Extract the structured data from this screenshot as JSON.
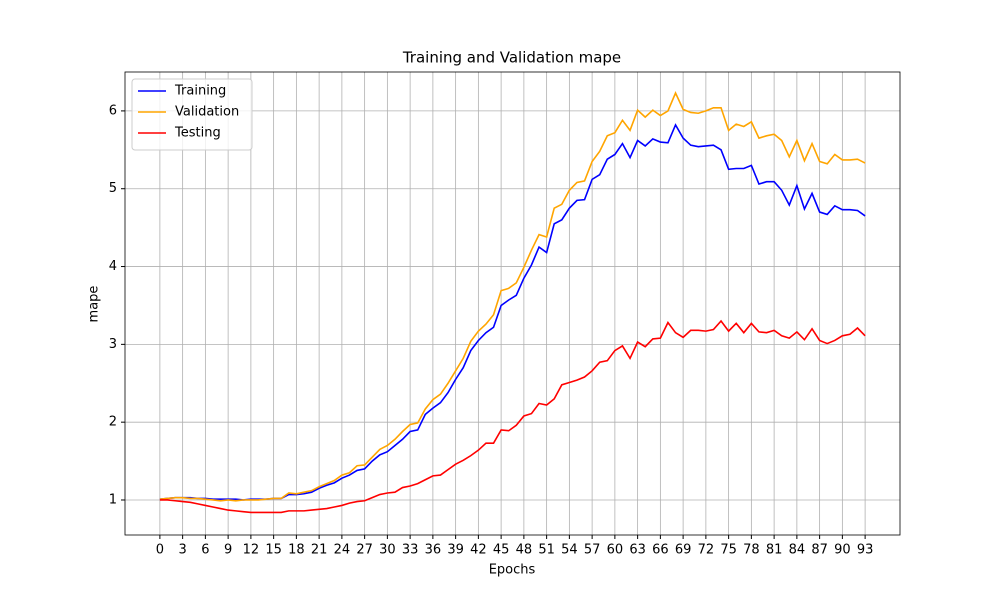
{
  "chart_data": {
    "type": "line",
    "title": "Training and Validation mape",
    "x_label": "Epochs",
    "y_label": "mape",
    "x": [
      0,
      1,
      2,
      3,
      4,
      5,
      6,
      7,
      8,
      9,
      10,
      11,
      12,
      13,
      14,
      15,
      16,
      17,
      18,
      19,
      20,
      21,
      22,
      23,
      24,
      25,
      26,
      27,
      28,
      29,
      30,
      31,
      32,
      33,
      34,
      35,
      36,
      37,
      38,
      39,
      40,
      41,
      42,
      43,
      44,
      45,
      46,
      47,
      48,
      49,
      50,
      51,
      52,
      53,
      54,
      55,
      56,
      57,
      58,
      59,
      60,
      61,
      62,
      63,
      64,
      65,
      66,
      67,
      68,
      69,
      70,
      71,
      72,
      73,
      74,
      75,
      76,
      77,
      78,
      79,
      80,
      81,
      82,
      83,
      84,
      85,
      86,
      87,
      88,
      89,
      90,
      91,
      92,
      93
    ],
    "series": [
      {
        "name": "Training",
        "color": "#0000ff",
        "values": [
          1.01,
          1.02,
          1.03,
          1.03,
          1.03,
          1.02,
          1.02,
          1.01,
          1.01,
          1.01,
          1.01,
          1.0,
          1.01,
          1.01,
          1.01,
          1.02,
          1.02,
          1.07,
          1.07,
          1.08,
          1.1,
          1.15,
          1.19,
          1.22,
          1.28,
          1.32,
          1.38,
          1.4,
          1.5,
          1.58,
          1.62,
          1.7,
          1.78,
          1.88,
          1.9,
          2.1,
          2.18,
          2.25,
          2.38,
          2.55,
          2.7,
          2.92,
          3.05,
          3.15,
          3.22,
          3.5,
          3.57,
          3.63,
          3.85,
          4.02,
          4.25,
          4.18,
          4.55,
          4.6,
          4.75,
          4.85,
          4.86,
          5.12,
          5.18,
          5.38,
          5.44,
          5.58,
          5.4,
          5.62,
          5.55,
          5.64,
          5.6,
          5.59,
          5.82,
          5.65,
          5.56,
          5.54,
          5.55,
          5.56,
          5.5,
          5.25,
          5.26,
          5.26,
          5.3,
          5.06,
          5.09,
          5.09,
          4.98,
          4.79,
          5.04,
          4.74,
          4.94,
          4.7,
          4.67,
          4.78,
          4.73,
          4.73,
          4.72,
          4.65
        ]
      },
      {
        "name": "Validation",
        "color": "#ffa500",
        "values": [
          1.01,
          1.02,
          1.03,
          1.03,
          1.02,
          1.02,
          1.01,
          1.0,
          0.99,
          1.0,
          0.99,
          1.0,
          1.0,
          1.0,
          1.01,
          1.02,
          1.02,
          1.09,
          1.08,
          1.1,
          1.12,
          1.17,
          1.21,
          1.25,
          1.32,
          1.35,
          1.44,
          1.45,
          1.55,
          1.65,
          1.7,
          1.78,
          1.88,
          1.97,
          1.99,
          2.17,
          2.29,
          2.36,
          2.5,
          2.66,
          2.82,
          3.04,
          3.17,
          3.26,
          3.38,
          3.69,
          3.72,
          3.79,
          3.99,
          4.21,
          4.41,
          4.38,
          4.75,
          4.8,
          4.98,
          5.08,
          5.1,
          5.35,
          5.48,
          5.68,
          5.72,
          5.88,
          5.75,
          6.01,
          5.92,
          6.01,
          5.94,
          6.0,
          6.23,
          6.02,
          5.98,
          5.97,
          6.0,
          6.04,
          6.04,
          5.75,
          5.83,
          5.8,
          5.86,
          5.65,
          5.68,
          5.7,
          5.62,
          5.41,
          5.62,
          5.36,
          5.58,
          5.35,
          5.32,
          5.44,
          5.37,
          5.37,
          5.38,
          5.33
        ]
      },
      {
        "name": "Testing",
        "color": "#ff0000",
        "values": [
          1.0,
          1.0,
          0.99,
          0.98,
          0.97,
          0.95,
          0.93,
          0.91,
          0.89,
          0.87,
          0.86,
          0.85,
          0.84,
          0.84,
          0.84,
          0.84,
          0.84,
          0.86,
          0.86,
          0.86,
          0.87,
          0.88,
          0.89,
          0.91,
          0.93,
          0.96,
          0.98,
          0.99,
          1.03,
          1.07,
          1.09,
          1.1,
          1.16,
          1.18,
          1.21,
          1.26,
          1.31,
          1.32,
          1.39,
          1.46,
          1.51,
          1.57,
          1.64,
          1.73,
          1.73,
          1.9,
          1.89,
          1.96,
          2.08,
          2.11,
          2.24,
          2.22,
          2.3,
          2.48,
          2.51,
          2.54,
          2.58,
          2.66,
          2.77,
          2.79,
          2.92,
          2.98,
          2.82,
          3.03,
          2.97,
          3.07,
          3.08,
          3.28,
          3.15,
          3.09,
          3.18,
          3.18,
          3.17,
          3.19,
          3.3,
          3.17,
          3.27,
          3.15,
          3.27,
          3.16,
          3.15,
          3.18,
          3.11,
          3.08,
          3.16,
          3.06,
          3.2,
          3.05,
          3.01,
          3.05,
          3.11,
          3.13,
          3.21,
          3.11
        ]
      }
    ],
    "xlim": [
      -4.6,
      97.6
    ],
    "ylim": [
      0.55,
      6.5
    ],
    "xticks": [
      0,
      3,
      6,
      9,
      12,
      15,
      18,
      21,
      24,
      27,
      30,
      33,
      36,
      39,
      42,
      45,
      48,
      51,
      54,
      57,
      60,
      63,
      66,
      69,
      72,
      75,
      78,
      81,
      84,
      87,
      90,
      93
    ],
    "yticks": [
      1,
      2,
      3,
      4,
      5,
      6
    ],
    "grid": true,
    "legend": "upper-left"
  }
}
